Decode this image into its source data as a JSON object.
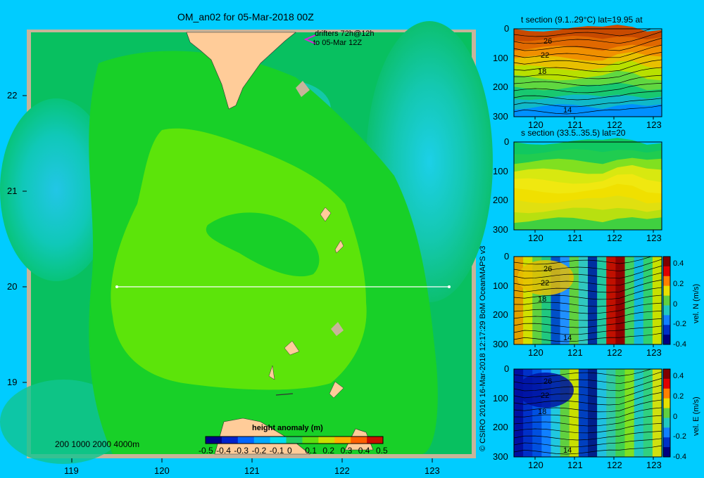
{
  "map": {
    "title": "OM_an02 for 05-Mar-2018 00Z",
    "drifters_line1": "drifters 72h@12h",
    "drifters_line2": "to 05-Mar 12Z",
    "lon_ticks": [
      "119",
      "120",
      "121",
      "122",
      "123"
    ],
    "lat_ticks": [
      "22",
      "21",
      "20",
      "19"
    ],
    "depth_legend": "200  1000  2000  4000m",
    "colorbar": {
      "title": "height anomaly  (m)",
      "labels": [
        "-0.5",
        "-0.4",
        "-0.3",
        "-0.2",
        "-0.1",
        "0",
        "0.1",
        "0.2",
        "0.3",
        "0.4",
        "0.5"
      ]
    },
    "section_line_lat": "20",
    "colors": {
      "background": "#00ccff",
      "land": "#ffcc99",
      "shelf": "#c8b49a",
      "section_line": "#ffffff"
    }
  },
  "credit": "© CSIRO 2016   16-Mar-2018 12:17:29 BoM OceanMAPS v3",
  "panels": [
    {
      "id": "t",
      "title": "t section (9.1..29°C) lat=19.95 at",
      "x_ticks": [
        "120",
        "121",
        "122",
        "123"
      ],
      "y_ticks": [
        "0",
        "100",
        "200",
        "300"
      ],
      "contour_labels": [
        "26",
        "22",
        "18",
        "14"
      ]
    },
    {
      "id": "s",
      "title": "s section (33.5..35.5) lat=20",
      "x_ticks": [
        "120",
        "121",
        "122",
        "123"
      ],
      "y_ticks": [
        "0",
        "100",
        "200",
        "300"
      ],
      "contour_labels": []
    },
    {
      "id": "vn",
      "title": "",
      "x_ticks": [
        "120",
        "121",
        "122",
        "123"
      ],
      "y_ticks": [
        "0",
        "100",
        "200",
        "300"
      ],
      "contour_labels": [
        "26",
        "22",
        "18",
        "14"
      ],
      "colorbar_label": "vel. N (m/s)",
      "colorbar_ticks": [
        "0.4",
        "0.2",
        "0",
        "-0.2",
        "-0.4"
      ]
    },
    {
      "id": "ve",
      "title": "",
      "x_ticks": [
        "120",
        "121",
        "122",
        "123"
      ],
      "y_ticks": [
        "0",
        "100",
        "200",
        "300"
      ],
      "contour_labels": [
        "26",
        "22",
        "18",
        "14"
      ],
      "colorbar_label": "vel. E (m/s)",
      "colorbar_ticks": [
        "0.4",
        "0.2",
        "0",
        "-0.2",
        "-0.4"
      ]
    }
  ]
}
